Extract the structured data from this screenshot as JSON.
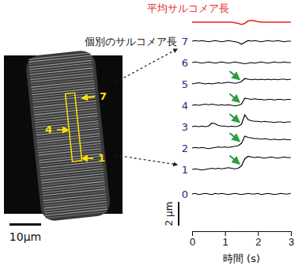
{
  "chart_data": {
    "type": "line",
    "group_label": "個別のサルコメア長",
    "x_label": "時間 (s)",
    "xlim": [
      0,
      3
    ],
    "xticks": [
      0,
      1,
      2,
      3
    ],
    "tick_labels": "x",
    "scale_bar": {
      "value": 2,
      "label": "2 μm"
    },
    "x": [
      0,
      0.1,
      0.2,
      0.3,
      0.4,
      0.5,
      0.6,
      0.7,
      0.8,
      0.9,
      1,
      1.1,
      1.2,
      1.3,
      1.4,
      1.5,
      1.6,
      1.7,
      1.8,
      1.9,
      2,
      2.1,
      2.2,
      2.3,
      2.4,
      2.5,
      2.6,
      2.7,
      2.8,
      2.9,
      3
    ],
    "series": [
      {
        "name": "平均サルコメア長",
        "color": "#e8261c",
        "values": [
          0,
          0,
          0,
          0,
          0,
          0,
          0,
          0,
          0,
          0,
          0,
          0,
          0,
          -0.05,
          -0.1,
          -0.2,
          -0.1,
          0.1,
          0.15,
          0.1,
          0.05,
          0,
          0,
          0,
          0,
          0,
          0,
          0,
          0,
          0,
          0
        ]
      },
      {
        "name": "0",
        "color": "#000000",
        "values": [
          0,
          0.05,
          -0.05,
          0,
          0.05,
          0,
          -0.05,
          0.05,
          0,
          0.05,
          0,
          -0.05,
          0,
          0.05,
          0,
          -0.05,
          0,
          0.05,
          0,
          0,
          0.05,
          -0.05,
          0,
          0.05,
          0,
          -0.05,
          0,
          0.05,
          0,
          0,
          0.05
        ]
      },
      {
        "name": "1",
        "color": "#000000",
        "arrow_x": 1.5,
        "values": [
          0,
          0.05,
          0,
          -0.05,
          0,
          0.05,
          0.1,
          0.05,
          0.1,
          0.05,
          0.1,
          0.15,
          0.1,
          0.05,
          0.1,
          0.3,
          0.9,
          1.1,
          1.05,
          1.0,
          1.05,
          1.0,
          0.95,
          1.0,
          1.05,
          1.0,
          0.95,
          1.0,
          1.05,
          1.0,
          1.0
        ]
      },
      {
        "name": "2",
        "color": "#000000",
        "arrow_x": 1.5,
        "values": [
          0,
          0.05,
          0,
          0.05,
          0,
          -0.05,
          0,
          0.05,
          0.1,
          0.05,
          0.1,
          0.05,
          0.1,
          0.15,
          0.2,
          0.4,
          1.0,
          0.9,
          0.85,
          0.8,
          0.8,
          0.75,
          0.8,
          0.75,
          0.7,
          0.75,
          0.7,
          0.7,
          0.75,
          0.7,
          0.7
        ]
      },
      {
        "name": "3",
        "color": "#000000",
        "arrow_x": 1.5,
        "values": [
          0,
          0.05,
          0,
          0.05,
          0,
          0.05,
          0.3,
          0.25,
          0.1,
          0.05,
          0.05,
          0,
          0.05,
          0,
          0.05,
          0.2,
          1.0,
          0.6,
          0.5,
          0.45,
          0.45,
          0.4,
          0.45,
          0.4,
          0.4,
          0.35,
          0.4,
          0.4,
          0.35,
          0.4,
          0.4
        ]
      },
      {
        "name": "4",
        "color": "#000000",
        "arrow_x": 1.5,
        "values": [
          0,
          0.05,
          0,
          0.05,
          0.1,
          0.05,
          0.1,
          0.05,
          0,
          0.05,
          0,
          0.05,
          0,
          -0.05,
          0,
          0.1,
          0.6,
          0.55,
          0.5,
          0.55,
          0.5,
          0.5,
          0.45,
          0.5,
          0.5,
          0.45,
          0.5,
          0.5,
          0.45,
          0.5,
          0.5
        ]
      },
      {
        "name": "5",
        "color": "#000000",
        "arrow_x": 1.5,
        "values": [
          0,
          0.05,
          0.1,
          0.05,
          0,
          0.05,
          0,
          0.05,
          0.1,
          0.05,
          0.1,
          0.15,
          0.1,
          0.05,
          0.1,
          0.2,
          0.45,
          0.4,
          0.35,
          0.4,
          0.35,
          0.4,
          0.35,
          0.4,
          0.35,
          0.4,
          0.35,
          0.4,
          0.4,
          0.35,
          0.4
        ]
      },
      {
        "name": "6",
        "color": "#000000",
        "values": [
          0,
          0.05,
          0,
          -0.05,
          0,
          0.05,
          0,
          -0.05,
          0,
          0.05,
          0,
          -0.05,
          0,
          0.05,
          0,
          -0.05,
          -0.1,
          -0.05,
          0,
          -0.05,
          0,
          0.05,
          0,
          -0.05,
          0,
          0.05,
          0,
          0,
          0.05,
          0,
          0
        ]
      },
      {
        "name": "7",
        "color": "#000000",
        "values": [
          0,
          0.05,
          0,
          0.05,
          0,
          -0.05,
          0,
          0.05,
          0,
          -0.05,
          0,
          0.05,
          0,
          -0.05,
          -0.1,
          -0.25,
          -0.1,
          0.05,
          0,
          0.05,
          0,
          -0.05,
          0,
          0.05,
          0,
          0,
          0.05,
          0,
          -0.05,
          0,
          0
        ]
      }
    ]
  },
  "image_panel": {
    "labels": [
      "7",
      "4",
      "1"
    ],
    "scale_bar": {
      "value": 10,
      "label": "10μm"
    }
  }
}
